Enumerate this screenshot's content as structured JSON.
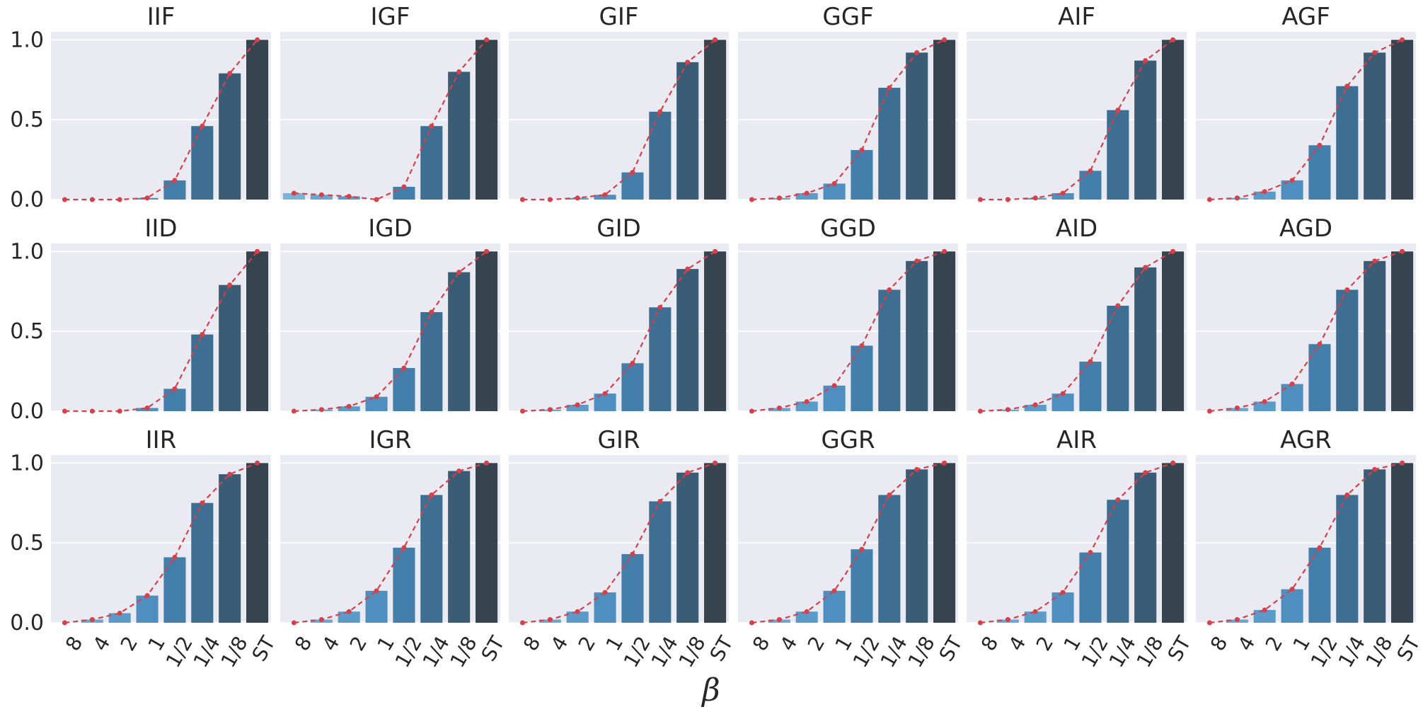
{
  "chart_data": {
    "type": "bar",
    "layout": "small-multiples-3x6",
    "xlabel": "β",
    "categories": [
      "8",
      "4",
      "2",
      "1",
      "1/2",
      "1/4",
      "1/8",
      "ST"
    ],
    "yticks": [
      "0.0",
      "0.5",
      "1.0"
    ],
    "ylim": [
      0,
      1.05
    ],
    "grid": true,
    "overlay": "red dashed line with markers tracing bar heights",
    "colors": {
      "background": "#eaeaf2",
      "grid": "#ffffff",
      "line": "#d6404a",
      "bars": [
        "#7ab2d8",
        "#6aa6d1",
        "#5b9bc9",
        "#4e8fbf",
        "#447fac",
        "#3e6e92",
        "#3b5c75",
        "#364450"
      ]
    },
    "panels": [
      {
        "title": "IIF",
        "values": [
          0.0,
          0.0,
          0.0,
          0.01,
          0.12,
          0.46,
          0.79,
          1.0
        ]
      },
      {
        "title": "IGF",
        "values": [
          0.04,
          0.03,
          0.02,
          0.0,
          0.08,
          0.46,
          0.8,
          1.0
        ]
      },
      {
        "title": "GIF",
        "values": [
          0.0,
          0.0,
          0.01,
          0.03,
          0.17,
          0.55,
          0.86,
          1.0
        ]
      },
      {
        "title": "GGF",
        "values": [
          0.0,
          0.01,
          0.04,
          0.1,
          0.31,
          0.7,
          0.92,
          1.0
        ]
      },
      {
        "title": "AIF",
        "values": [
          0.0,
          0.0,
          0.01,
          0.04,
          0.18,
          0.56,
          0.87,
          1.0
        ]
      },
      {
        "title": "AGF",
        "values": [
          0.0,
          0.01,
          0.05,
          0.12,
          0.34,
          0.71,
          0.92,
          1.0
        ]
      },
      {
        "title": "IID",
        "values": [
          0.0,
          0.0,
          0.0,
          0.02,
          0.14,
          0.48,
          0.79,
          1.0
        ]
      },
      {
        "title": "IGD",
        "values": [
          0.0,
          0.01,
          0.03,
          0.09,
          0.27,
          0.62,
          0.87,
          1.0
        ]
      },
      {
        "title": "GID",
        "values": [
          0.0,
          0.01,
          0.04,
          0.11,
          0.3,
          0.65,
          0.89,
          1.0
        ]
      },
      {
        "title": "GGD",
        "values": [
          0.0,
          0.02,
          0.06,
          0.16,
          0.41,
          0.76,
          0.94,
          1.0
        ]
      },
      {
        "title": "AID",
        "values": [
          0.0,
          0.01,
          0.04,
          0.11,
          0.31,
          0.66,
          0.9,
          1.0
        ]
      },
      {
        "title": "AGD",
        "values": [
          0.0,
          0.02,
          0.06,
          0.17,
          0.42,
          0.76,
          0.94,
          1.0
        ]
      },
      {
        "title": "IIR",
        "values": [
          0.0,
          0.02,
          0.06,
          0.17,
          0.41,
          0.75,
          0.93,
          1.0
        ]
      },
      {
        "title": "IGR",
        "values": [
          0.0,
          0.02,
          0.07,
          0.2,
          0.47,
          0.8,
          0.95,
          1.0
        ]
      },
      {
        "title": "GIR",
        "values": [
          0.0,
          0.02,
          0.07,
          0.19,
          0.43,
          0.76,
          0.94,
          1.0
        ]
      },
      {
        "title": "GGR",
        "values": [
          0.0,
          0.02,
          0.07,
          0.2,
          0.46,
          0.8,
          0.96,
          1.0
        ]
      },
      {
        "title": "AIR",
        "values": [
          0.0,
          0.02,
          0.07,
          0.19,
          0.44,
          0.77,
          0.94,
          1.0
        ]
      },
      {
        "title": "AGR",
        "values": [
          0.0,
          0.02,
          0.08,
          0.21,
          0.47,
          0.8,
          0.96,
          1.0
        ]
      }
    ]
  }
}
